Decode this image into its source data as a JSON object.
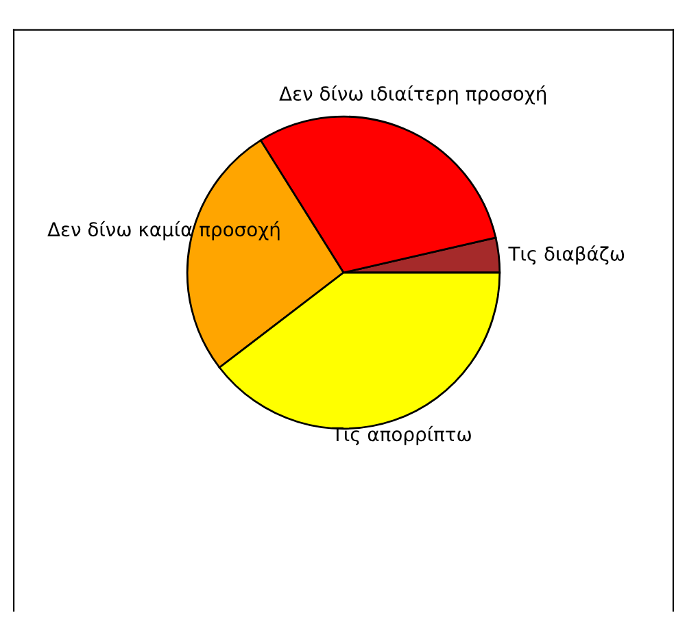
{
  "chart_data": {
    "type": "pie",
    "categories": [
      "Τις διαβάζω",
      "Δεν δίνω ιδιαίτερη προσοχή",
      "Δεν δίνω καμία προσοχή",
      "Τις απορρίπτω"
    ],
    "values": [
      3.6,
      30.3,
      26.5,
      39.6
    ],
    "colors": [
      "#a52a2a",
      "#ff0000",
      "#ffa500",
      "#ffff00"
    ]
  }
}
